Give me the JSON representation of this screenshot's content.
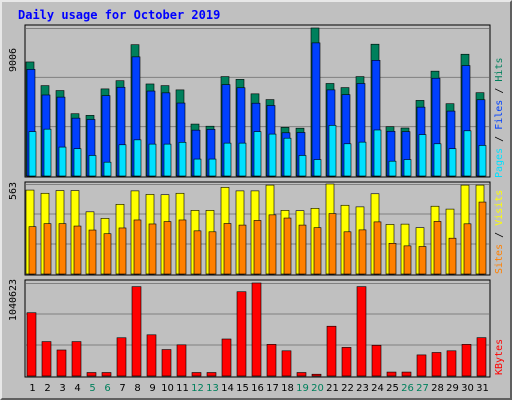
{
  "title": "Daily usage for October 2019",
  "colors": {
    "title": "#0000ff",
    "hits": "#00805c",
    "files": "#0040ff",
    "pages": "#00e0ff",
    "visits": "#ffff00",
    "sites": "#ff8000",
    "kbytes": "#ff0000",
    "weekday": "#000000",
    "weekend": "#00805c"
  },
  "axes": {
    "top_max_label": "9006",
    "mid_max_label": "563",
    "bottom_max_label": "1040623"
  },
  "legend": {
    "pages": "Pages",
    "files": "Files",
    "hits": "Hits",
    "sep": "/",
    "sites": "Sites",
    "visits": "Visits",
    "kbytes": "KBytes"
  },
  "chart_data": [
    {
      "type": "bar",
      "title": "Daily usage for October 2019",
      "ylim": [
        0,
        9006
      ],
      "categories": [
        "1",
        "2",
        "3",
        "4",
        "5",
        "6",
        "7",
        "8",
        "9",
        "10",
        "11",
        "12",
        "13",
        "14",
        "15",
        "16",
        "17",
        "18",
        "19",
        "20",
        "21",
        "22",
        "23",
        "24",
        "25",
        "26",
        "27",
        "28",
        "29",
        "30",
        "31"
      ],
      "weekend_days": [
        5,
        6,
        12,
        13,
        19,
        20,
        26,
        27
      ],
      "series": [
        {
          "name": "Hits",
          "values": [
            6940,
            5500,
            5200,
            3790,
            3690,
            5300,
            5800,
            7990,
            5600,
            5500,
            5240,
            3160,
            3030,
            6050,
            5880,
            5000,
            4650,
            2960,
            2910,
            9006,
            5630,
            5380,
            6050,
            8020,
            3000,
            2920,
            4600,
            6380,
            4400,
            7410,
            5070
          ]
        },
        {
          "name": "Files",
          "values": [
            6490,
            4930,
            4800,
            3520,
            3440,
            4890,
            5400,
            7250,
            5170,
            5060,
            4440,
            2790,
            2840,
            5560,
            5370,
            4430,
            4290,
            2630,
            2650,
            8100,
            5240,
            4950,
            5630,
            7040,
            2720,
            2700,
            4190,
            5950,
            3950,
            6720,
            4640
          ]
        },
        {
          "name": "Pages",
          "values": [
            2700,
            2850,
            1760,
            1660,
            1250,
            840,
            1900,
            2200,
            1940,
            1940,
            2050,
            1030,
            1030,
            2000,
            2000,
            2700,
            2550,
            2300,
            1250,
            1000,
            3080,
            1960,
            2060,
            2800,
            900,
            1000,
            2520,
            1960,
            1660,
            2750,
            1860
          ]
        }
      ]
    },
    {
      "type": "bar",
      "ylim": [
        0,
        563
      ],
      "categories": [
        "1",
        "2",
        "3",
        "4",
        "5",
        "6",
        "7",
        "8",
        "9",
        "10",
        "11",
        "12",
        "13",
        "14",
        "15",
        "16",
        "17",
        "18",
        "19",
        "20",
        "21",
        "22",
        "23",
        "24",
        "25",
        "26",
        "27",
        "28",
        "29",
        "30",
        "31"
      ],
      "series": [
        {
          "name": "Visits",
          "values": [
            525,
            505,
            522,
            522,
            389,
            348,
            436,
            520,
            498,
            496,
            505,
            398,
            398,
            542,
            520,
            520,
            556,
            398,
            396,
            411,
            563,
            430,
            420,
            502,
            310,
            312,
            290,
            424,
            406,
            556,
            556
          ]
        },
        {
          "name": "Sites",
          "values": [
            296,
            315,
            315,
            300,
            275,
            252,
            288,
            338,
            313,
            328,
            338,
            270,
            264,
            316,
            306,
            335,
            370,
            350,
            306,
            290,
            378,
            264,
            276,
            326,
            192,
            176,
            172,
            329,
            224,
            314,
            450
          ]
        }
      ]
    },
    {
      "type": "bar",
      "ylim": [
        0,
        1040623
      ],
      "categories": [
        "1",
        "2",
        "3",
        "4",
        "5",
        "6",
        "7",
        "8",
        "9",
        "10",
        "11",
        "12",
        "13",
        "14",
        "15",
        "16",
        "17",
        "18",
        "19",
        "20",
        "21",
        "22",
        "23",
        "24",
        "25",
        "26",
        "27",
        "28",
        "29",
        "30",
        "31"
      ],
      "series": [
        {
          "name": "KBytes",
          "values": [
            708000,
            385000,
            291000,
            385000,
            39000,
            39000,
            428000,
            1000000,
            461000,
            296000,
            349000,
            39000,
            39000,
            414000,
            943000,
            1040623,
            354000,
            282000,
            39000,
            20000,
            557000,
            320000,
            1000000,
            344000,
            44000,
            44000,
            236000,
            263000,
            282000,
            354000,
            429000
          ]
        }
      ]
    }
  ]
}
